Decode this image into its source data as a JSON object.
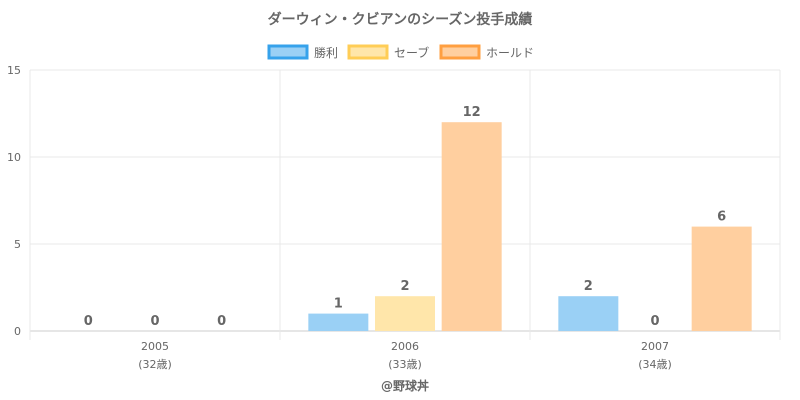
{
  "chart_data": {
    "type": "bar",
    "title": "ダーウィン・クビアンのシーズン投手成績",
    "categories": [
      "2005",
      "2006",
      "2007"
    ],
    "category_sublabels": [
      "(32歳)",
      "(33歳)",
      "(34歳)"
    ],
    "series": [
      {
        "name": "勝利",
        "values": [
          0,
          1,
          2
        ],
        "fill": "#9ad0f5",
        "stroke": "#36a2eb"
      },
      {
        "name": "セーブ",
        "values": [
          0,
          2,
          0
        ],
        "fill": "#ffe6aa",
        "stroke": "#ffcd56"
      },
      {
        "name": "ホールド",
        "values": [
          0,
          12,
          6
        ],
        "fill": "#ffcf9f",
        "stroke": "#ff9f40"
      }
    ],
    "y_ticks": [
      0,
      5,
      10,
      15
    ],
    "ylim": [
      0,
      15
    ],
    "legend_position": "top",
    "grid": true
  },
  "credit": "@野球丼"
}
